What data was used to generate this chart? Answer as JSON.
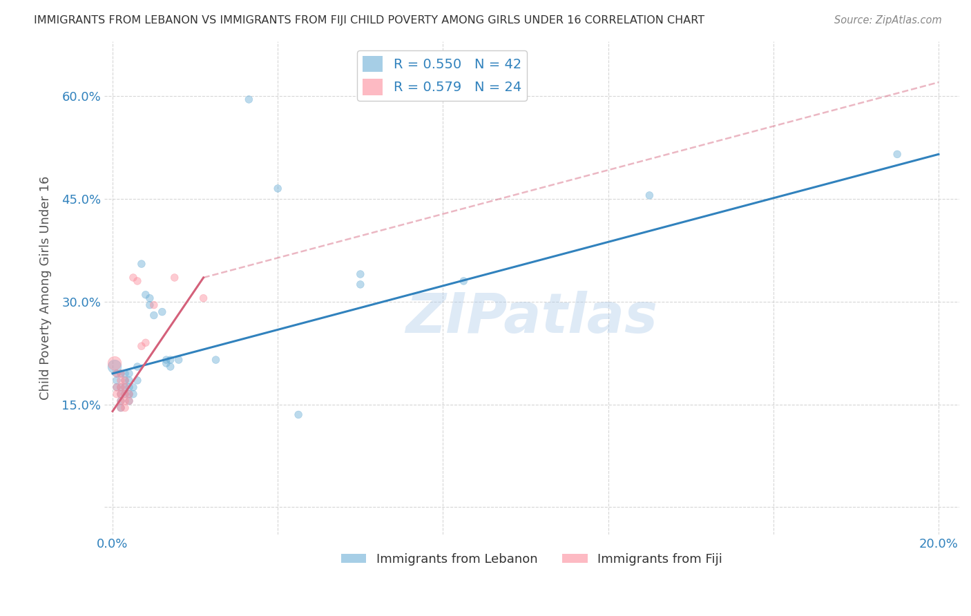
{
  "title": "IMMIGRANTS FROM LEBANON VS IMMIGRANTS FROM FIJI CHILD POVERTY AMONG GIRLS UNDER 16 CORRELATION CHART",
  "source": "Source: ZipAtlas.com",
  "ylabel": "Child Poverty Among Girls Under 16",
  "watermark": "ZIPatlas",
  "xlim": [
    -0.002,
    0.205
  ],
  "ylim": [
    -0.04,
    0.68
  ],
  "xticks": [
    0.0,
    0.04,
    0.08,
    0.12,
    0.16,
    0.2
  ],
  "yticks": [
    0.0,
    0.15,
    0.3,
    0.45,
    0.6
  ],
  "xtick_labels": [
    "0.0%",
    "",
    "",
    "",
    "",
    "20.0%"
  ],
  "ytick_labels": [
    "",
    "15.0%",
    "30.0%",
    "45.0%",
    "60.0%"
  ],
  "legend1_label": "R = 0.550   N = 42",
  "legend2_label": "R = 0.579   N = 24",
  "lebanon_color": "#6baed6",
  "fiji_color": "#fc8d9c",
  "legend_r_color": "#3182bd",
  "background_color": "#ffffff",
  "grid_color": "#cccccc",
  "lebanon_scatter": [
    [
      0.0005,
      0.205
    ],
    [
      0.001,
      0.195
    ],
    [
      0.001,
      0.185
    ],
    [
      0.001,
      0.175
    ],
    [
      0.002,
      0.195
    ],
    [
      0.002,
      0.175
    ],
    [
      0.002,
      0.165
    ],
    [
      0.002,
      0.155
    ],
    [
      0.002,
      0.145
    ],
    [
      0.003,
      0.195
    ],
    [
      0.003,
      0.185
    ],
    [
      0.003,
      0.175
    ],
    [
      0.003,
      0.165
    ],
    [
      0.004,
      0.195
    ],
    [
      0.004,
      0.185
    ],
    [
      0.004,
      0.175
    ],
    [
      0.004,
      0.165
    ],
    [
      0.004,
      0.155
    ],
    [
      0.005,
      0.175
    ],
    [
      0.005,
      0.165
    ],
    [
      0.006,
      0.205
    ],
    [
      0.006,
      0.185
    ],
    [
      0.007,
      0.355
    ],
    [
      0.008,
      0.31
    ],
    [
      0.009,
      0.305
    ],
    [
      0.009,
      0.295
    ],
    [
      0.01,
      0.28
    ],
    [
      0.012,
      0.285
    ],
    [
      0.013,
      0.21
    ],
    [
      0.013,
      0.215
    ],
    [
      0.014,
      0.215
    ],
    [
      0.014,
      0.205
    ],
    [
      0.016,
      0.215
    ],
    [
      0.025,
      0.215
    ],
    [
      0.033,
      0.595
    ],
    [
      0.04,
      0.465
    ],
    [
      0.045,
      0.135
    ],
    [
      0.06,
      0.34
    ],
    [
      0.06,
      0.325
    ],
    [
      0.085,
      0.33
    ],
    [
      0.13,
      0.455
    ],
    [
      0.19,
      0.515
    ]
  ],
  "lebanon_sizes": [
    200,
    60,
    60,
    60,
    60,
    60,
    60,
    60,
    60,
    60,
    60,
    60,
    60,
    60,
    60,
    60,
    60,
    60,
    60,
    60,
    60,
    60,
    60,
    60,
    60,
    60,
    60,
    60,
    60,
    60,
    60,
    60,
    60,
    60,
    60,
    60,
    60,
    60,
    60,
    60,
    60,
    60
  ],
  "fiji_scatter": [
    [
      0.0005,
      0.21
    ],
    [
      0.001,
      0.195
    ],
    [
      0.001,
      0.175
    ],
    [
      0.001,
      0.165
    ],
    [
      0.002,
      0.195
    ],
    [
      0.002,
      0.185
    ],
    [
      0.002,
      0.175
    ],
    [
      0.002,
      0.165
    ],
    [
      0.002,
      0.155
    ],
    [
      0.002,
      0.145
    ],
    [
      0.003,
      0.185
    ],
    [
      0.003,
      0.175
    ],
    [
      0.003,
      0.165
    ],
    [
      0.003,
      0.155
    ],
    [
      0.003,
      0.145
    ],
    [
      0.004,
      0.165
    ],
    [
      0.004,
      0.155
    ],
    [
      0.005,
      0.335
    ],
    [
      0.006,
      0.33
    ],
    [
      0.007,
      0.235
    ],
    [
      0.008,
      0.24
    ],
    [
      0.01,
      0.295
    ],
    [
      0.015,
      0.335
    ],
    [
      0.022,
      0.305
    ]
  ],
  "fiji_sizes": [
    200,
    60,
    60,
    60,
    60,
    60,
    60,
    60,
    60,
    60,
    60,
    60,
    60,
    60,
    60,
    60,
    60,
    60,
    60,
    60,
    60,
    60,
    60,
    60
  ],
  "lebanon_line": [
    [
      0.0,
      0.195
    ],
    [
      0.2,
      0.515
    ]
  ],
  "fiji_line_solid": [
    [
      0.0,
      0.14
    ],
    [
      0.022,
      0.335
    ]
  ],
  "fiji_line_dashed": [
    [
      0.022,
      0.335
    ],
    [
      0.2,
      0.62
    ]
  ]
}
